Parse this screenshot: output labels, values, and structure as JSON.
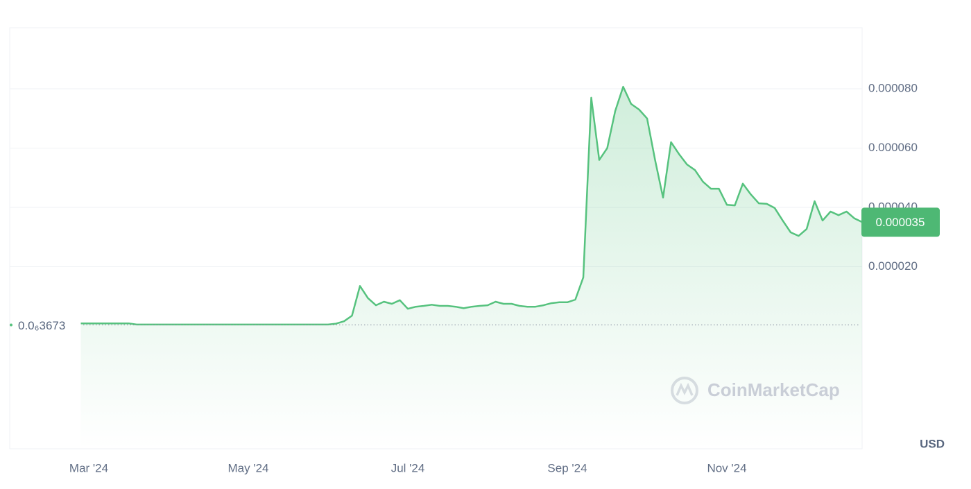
{
  "chart_data": {
    "type": "line",
    "categories": [
      null,
      "Mar '24",
      null,
      null,
      null,
      null,
      null,
      null,
      null,
      null,
      null,
      null,
      null,
      null,
      null,
      null,
      null,
      null,
      null,
      null,
      null,
      "May '24",
      null,
      null,
      null,
      null,
      null,
      null,
      null,
      null,
      null,
      null,
      null,
      null,
      null,
      null,
      null,
      null,
      null,
      null,
      null,
      "Jul '24",
      null,
      null,
      null,
      null,
      null,
      null,
      null,
      null,
      null,
      null,
      null,
      null,
      null,
      null,
      null,
      null,
      null,
      null,
      null,
      "Sep '24",
      null,
      null,
      null,
      null,
      null,
      null,
      null,
      null,
      null,
      null,
      null,
      null,
      null,
      null,
      null,
      null,
      null,
      null,
      null,
      "Nov '24",
      null,
      null,
      null,
      null,
      null,
      null,
      null,
      null,
      null,
      null,
      null,
      null,
      null,
      null,
      null,
      null,
      null
    ],
    "series": [
      {
        "color": "#56c27e",
        "values": [
          9e-07,
          9e-07,
          9e-07,
          9e-07,
          9e-07,
          9e-07,
          9e-07,
          5e-07,
          5e-07,
          5e-07,
          5e-07,
          5e-07,
          5e-07,
          5e-07,
          5e-07,
          5e-07,
          5e-07,
          5e-07,
          5e-07,
          5e-07,
          5e-07,
          5e-07,
          5e-07,
          5e-07,
          5e-07,
          5e-07,
          5e-07,
          5e-07,
          5e-07,
          5e-07,
          5e-07,
          5e-07,
          8e-07,
          1.6e-06,
          3.5e-06,
          1.35e-05,
          9.4e-06,
          7e-06,
          8.2e-06,
          7.5e-06,
          8.7e-06,
          5.8e-06,
          6.5e-06,
          6.8e-06,
          7.2e-06,
          6.8e-06,
          6.8e-06,
          6.5e-06,
          6e-06,
          6.5e-06,
          6.8e-06,
          7e-06,
          8.2e-06,
          7.5e-06,
          7.5e-06,
          6.8e-06,
          6.5e-06,
          6.5e-06,
          7e-06,
          7.7e-06,
          8e-06,
          8e-06,
          8.9e-06,
          1.64e-05,
          7.7e-05,
          5.6e-05,
          6e-05,
          7.25e-05,
          8.07e-05,
          7.49e-05,
          7.3e-05,
          7e-05,
          5.6e-05,
          4.33e-05,
          6.2e-05,
          5.8e-05,
          5.45e-05,
          5.26e-05,
          4.87e-05,
          4.63e-05,
          4.63e-05,
          4.09e-05,
          4.07e-05,
          4.8e-05,
          4.44e-05,
          4.14e-05,
          4.12e-05,
          3.98e-05,
          3.56e-05,
          3.16e-05,
          3.04e-05,
          3.27e-05,
          4.21e-05,
          3.56e-05,
          3.86e-05,
          3.74e-05,
          3.86e-05,
          3.63e-05,
          3.5e-05
        ]
      }
    ],
    "ylim": [
      -4.14e-05,
      0.0001006
    ],
    "yticks": [
      {
        "value": 2e-05,
        "label": "0.000020"
      },
      {
        "value": 4e-05,
        "label": "0.000040"
      },
      {
        "value": 6e-05,
        "label": "0.000060"
      },
      {
        "value": 8e-05,
        "label": "0.000080"
      }
    ],
    "grid": true,
    "start_price": {
      "value": 3.673e-07,
      "label": "0.0₆3673"
    },
    "current_price": {
      "value": 3.5e-05,
      "label": "0.000035"
    },
    "currency": "USD",
    "watermark": "CoinMarketCap"
  }
}
